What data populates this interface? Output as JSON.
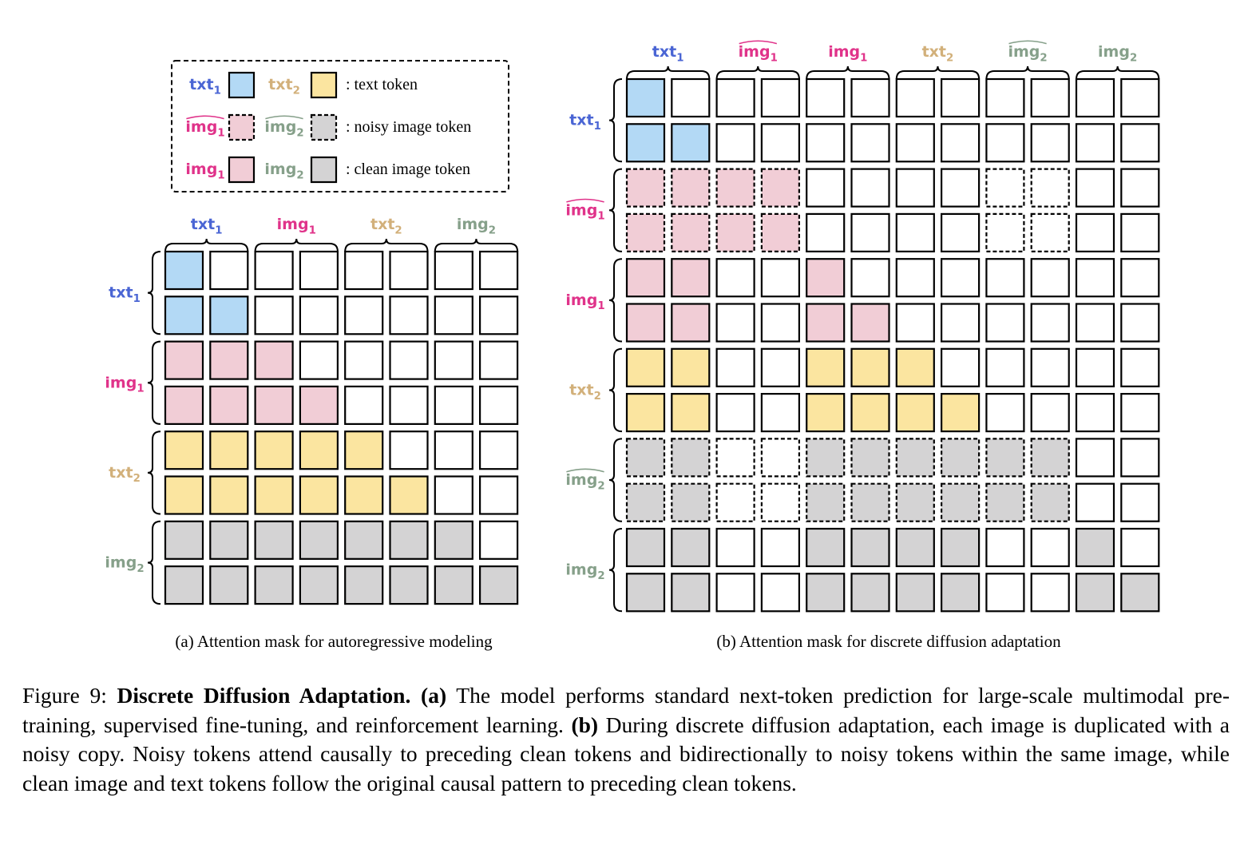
{
  "colors": {
    "txt1": "#4a65d4",
    "img1": "#e0338a",
    "txt2": "#d2b07a",
    "img2": "#86a08a",
    "fill_text1": "#b3d9f5",
    "fill_img1": "#f1cdd6",
    "fill_text2": "#fbe5a0",
    "fill_img2": "#d4d3d4"
  },
  "legend": {
    "rows": [
      {
        "left_label": "txt",
        "left_sub": "1",
        "left_key": "txt1",
        "left_fill": "t1",
        "left_hat": false,
        "right_label": "txt",
        "right_sub": "2",
        "right_key": "txt2",
        "right_fill": "t2",
        "right_hat": false,
        "dashed": false,
        "desc": ": text token"
      },
      {
        "left_label": "img",
        "left_sub": "1",
        "left_key": "img1",
        "left_fill": "i1",
        "left_hat": true,
        "right_label": "img",
        "right_sub": "2",
        "right_key": "img2",
        "right_fill": "i2",
        "right_hat": true,
        "dashed": true,
        "desc": ": noisy image token"
      },
      {
        "left_label": "img",
        "left_sub": "1",
        "left_key": "img1",
        "left_fill": "i1",
        "left_hat": false,
        "right_label": "img",
        "right_sub": "2",
        "right_key": "img2",
        "right_fill": "i2",
        "right_hat": false,
        "dashed": false,
        "desc": ": clean image token"
      }
    ]
  },
  "panel_a": {
    "caption": "(a) Attention mask for autoregressive modeling",
    "groups": [
      {
        "label": "txt",
        "sub": "1",
        "key": "txt1",
        "hat": false
      },
      {
        "label": "img",
        "sub": "1",
        "key": "img1",
        "hat": false
      },
      {
        "label": "txt",
        "sub": "2",
        "key": "txt2",
        "hat": false
      },
      {
        "label": "img",
        "sub": "2",
        "key": "img2",
        "hat": false
      }
    ],
    "grid": [
      "t1,_,_,_,_,_,_,_",
      "t1,t1,_,_,_,_,_,_",
      "i1,i1,i1,_,_,_,_,_",
      "i1,i1,i1,i1,_,_,_,_",
      "t2,t2,t2,t2,t2,_,_,_",
      "t2,t2,t2,t2,t2,t2,_,_",
      "i2,i2,i2,i2,i2,i2,i2,_",
      "i2,i2,i2,i2,i2,i2,i2,i2"
    ]
  },
  "panel_b": {
    "caption": "(b) Attention mask for discrete diffusion adaptation",
    "groups": [
      {
        "label": "txt",
        "sub": "1",
        "key": "txt1",
        "hat": false
      },
      {
        "label": "img",
        "sub": "1",
        "key": "img1",
        "hat": true
      },
      {
        "label": "img",
        "sub": "1",
        "key": "img1",
        "hat": false
      },
      {
        "label": "txt",
        "sub": "2",
        "key": "txt2",
        "hat": false
      },
      {
        "label": "img",
        "sub": "2",
        "key": "img2",
        "hat": true
      },
      {
        "label": "img",
        "sub": "2",
        "key": "img2",
        "hat": false
      }
    ],
    "dashed_row_groups": [
      1,
      4
    ],
    "grid": [
      "t1,_,_,_,_,_,_,_,_,_,_,_",
      "t1,t1,_,_,_,_,_,_,_,_,_,_",
      "i1,i1,i1,i1,_,_,_,_,_,_,_,_",
      "i1,i1,i1,i1,_,_,_,_,_,_,_,_",
      "i1,i1,_,_,i1,_,_,_,_,_,_,_",
      "i1,i1,_,_,i1,i1,_,_,_,_,_,_",
      "t2,t2,_,_,t2,t2,t2,_,_,_,_,_",
      "t2,t2,_,_,t2,t2,t2,t2,_,_,_,_",
      "i2,i2,_,_,i2,i2,i2,i2,i2,i2,_,_",
      "i2,i2,_,_,i2,i2,i2,i2,i2,i2,_,_",
      "i2,i2,_,_,i2,i2,i2,i2,_,_,i2,_",
      "i2,i2,_,_,i2,i2,i2,i2,_,_,i2,i2"
    ]
  },
  "caption": {
    "prefix": "Figure 9: ",
    "title": "Discrete Diffusion Adaptation.",
    "a_tag": "(a)",
    "a_text": " The model performs standard next-token prediction for large-scale multimodal pre-training, supervised fine-tuning, and reinforcement learning. ",
    "b_tag": "(b)",
    "b_text": " During discrete diffusion adaptation, each image is duplicated with a noisy copy. Noisy tokens attend causally to preceding clean tokens and bidirectionally to noisy tokens within the same image, while clean image and text tokens follow the original causal pattern to preceding clean tokens."
  }
}
